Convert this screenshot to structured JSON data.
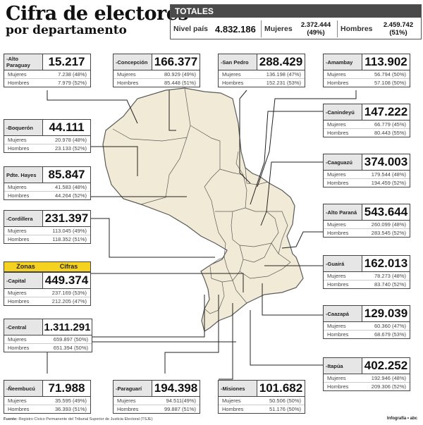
{
  "header": {
    "title": "Cifra de electores",
    "subtitle": "por departamento"
  },
  "totals": {
    "heading": "TOTALES",
    "nivel_label": "Nivel país",
    "nivel_value": "4.832.186",
    "mujeres_label": "Mujeres",
    "mujeres_value": "2.372.444",
    "mujeres_pct": "(49%)",
    "hombres_label": "Hombres",
    "hombres_value": "2.459.742",
    "hombres_pct": "(51%)"
  },
  "row_labels": {
    "mujeres": "Mujeres",
    "hombres": "Hombres"
  },
  "zonas": {
    "zonas_label": "Zonas",
    "cifras_label": "Cifras"
  },
  "departments": {
    "alto_paraguay": {
      "name": "-Alto Paraguay",
      "total": "15.217",
      "mujeres": "7.238 (48%)",
      "hombres": "7.979 (52%)"
    },
    "concepcion": {
      "name": "-Concepción",
      "total": "166.377",
      "mujeres": "80.929 (49%)",
      "hombres": "85.448 (51%)"
    },
    "san_pedro": {
      "name": "-San Pedro",
      "total": "288.429",
      "mujeres": "136.198 (47%)",
      "hombres": "152.231 (53%)"
    },
    "amambay": {
      "name": "-Amambay",
      "total": "113.902",
      "mujeres": "56.794 (50%)",
      "hombres": "57.108 (50%)"
    },
    "canindeyu": {
      "name": "-Canindeyú",
      "total": "147.222",
      "mujeres": "66.779 (45%)",
      "hombres": "80.443 (55%)"
    },
    "boqueron": {
      "name": "-Boquerón",
      "total": "44.111",
      "mujeres": "20.978 (48%)",
      "hombres": "23.133 (52%)"
    },
    "caaguazu": {
      "name": "-Caaguazú",
      "total": "374.003",
      "mujeres": "179.544 (48%)",
      "hombres": "194.459 (52%)"
    },
    "pdte_hayes": {
      "name": "Pdte. Hayes",
      "total": "85.847",
      "mujeres": "41.583 (48%)",
      "hombres": "44.264 (52%)"
    },
    "alto_parana": {
      "name": "-Alto Paraná",
      "total": "543.644",
      "mujeres": "260.099 (48%)",
      "hombres": "283.545 (52%)"
    },
    "cordillera": {
      "name": "-Cordillera",
      "total": "231.397",
      "mujeres": "113.045 (49%)",
      "hombres": "118.352 (51%)"
    },
    "capital": {
      "name": "-Capital",
      "total": "449.374",
      "mujeres": "237.169 (53%)",
      "hombres": "212.205 (47%)"
    },
    "guaira": {
      "name": "-Guairá",
      "total": "162.013",
      "mujeres": "78.273 (48%)",
      "hombres": "83.740 (52%)"
    },
    "caazapa": {
      "name": "-Caazapá",
      "total": "129.039",
      "mujeres": "60.360 (47%)",
      "hombres": "68.679 (53%)"
    },
    "central": {
      "name": "-Central",
      "total": "1.311.291",
      "mujeres": "659.897 (50%)",
      "hombres": "651.394 (50%)"
    },
    "itapua": {
      "name": "-Itapúa",
      "total": "402.252",
      "mujeres": "192.946 (48%)",
      "hombres": "209.306 (52%)"
    },
    "neembucu": {
      "name": "-Ñeembucú",
      "total": "71.988",
      "mujeres": "35.595 (49%)",
      "hombres": "36.393 (51%)"
    },
    "paraguari": {
      "name": "-Paraguarí",
      "total": "194.398",
      "mujeres": "94.511(49%)",
      "hombres": "99.887 (51%)"
    },
    "misiones": {
      "name": "-Misiones",
      "total": "101.682",
      "mujeres": "50.506 (50%)",
      "hombres": "51.176 (50%)"
    }
  },
  "footer": {
    "source_label": "Fuente:",
    "source_text": "Registro Cívico Permanente del Tribunal Superior de Justicia Electoral (TSJE)",
    "credit": "Infografía • abc"
  },
  "colors": {
    "map_fill": "#f1ead6",
    "map_stroke": "#5a5a5a",
    "zonas_yellow": "#f4d21f",
    "totals_head": "#4a4a4a",
    "name_bg": "#e6e6e6"
  }
}
